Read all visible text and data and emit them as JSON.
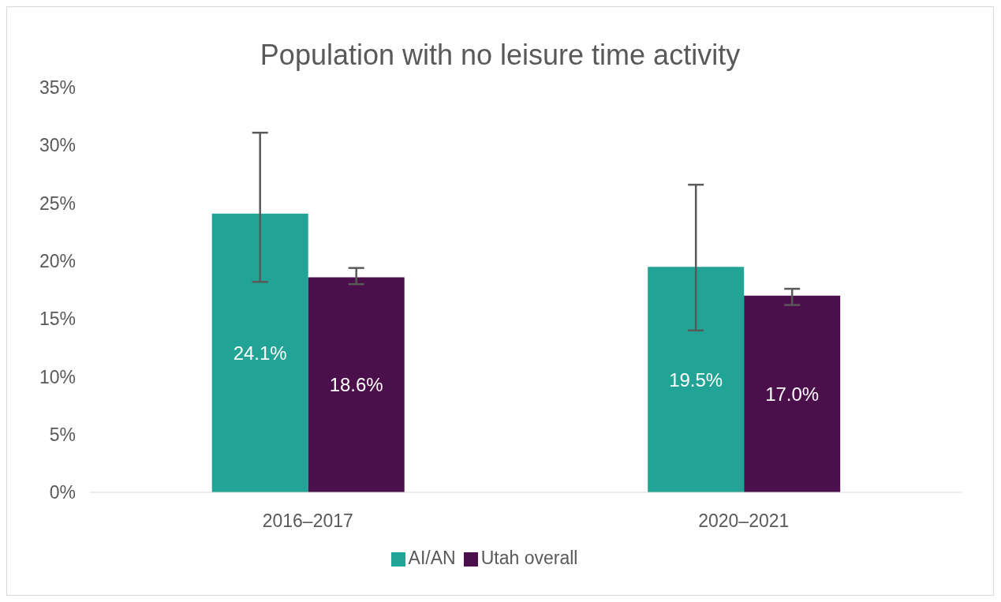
{
  "chart_data": {
    "type": "bar",
    "title": "Population with no leisure time activity",
    "categories": [
      "2016–2017",
      "2020–2021"
    ],
    "series": [
      {
        "name": "AI/AN",
        "color": "#21a396",
        "values": [
          24.1,
          19.5
        ],
        "value_labels": [
          "24.1%",
          "19.5%"
        ],
        "errors": [
          [
            18.2,
            31.1
          ],
          [
            14.0,
            26.6
          ]
        ]
      },
      {
        "name": "Utah overall",
        "color": "#4b0f4b",
        "values": [
          18.6,
          17.0
        ],
        "value_labels": [
          "18.6%",
          "17.0%"
        ],
        "errors": [
          [
            18.0,
            19.4
          ],
          [
            16.2,
            17.6
          ]
        ]
      }
    ],
    "ylim": [
      0,
      35
    ],
    "yticks": [
      {
        "value": 0,
        "label": "0%"
      },
      {
        "value": 5,
        "label": "5%"
      },
      {
        "value": 10,
        "label": "10%"
      },
      {
        "value": 15,
        "label": "15%"
      },
      {
        "value": 20,
        "label": "20%"
      },
      {
        "value": 25,
        "label": "25%"
      },
      {
        "value": 30,
        "label": "30%"
      },
      {
        "value": 35,
        "label": "35%"
      }
    ],
    "legend": "bottom"
  }
}
